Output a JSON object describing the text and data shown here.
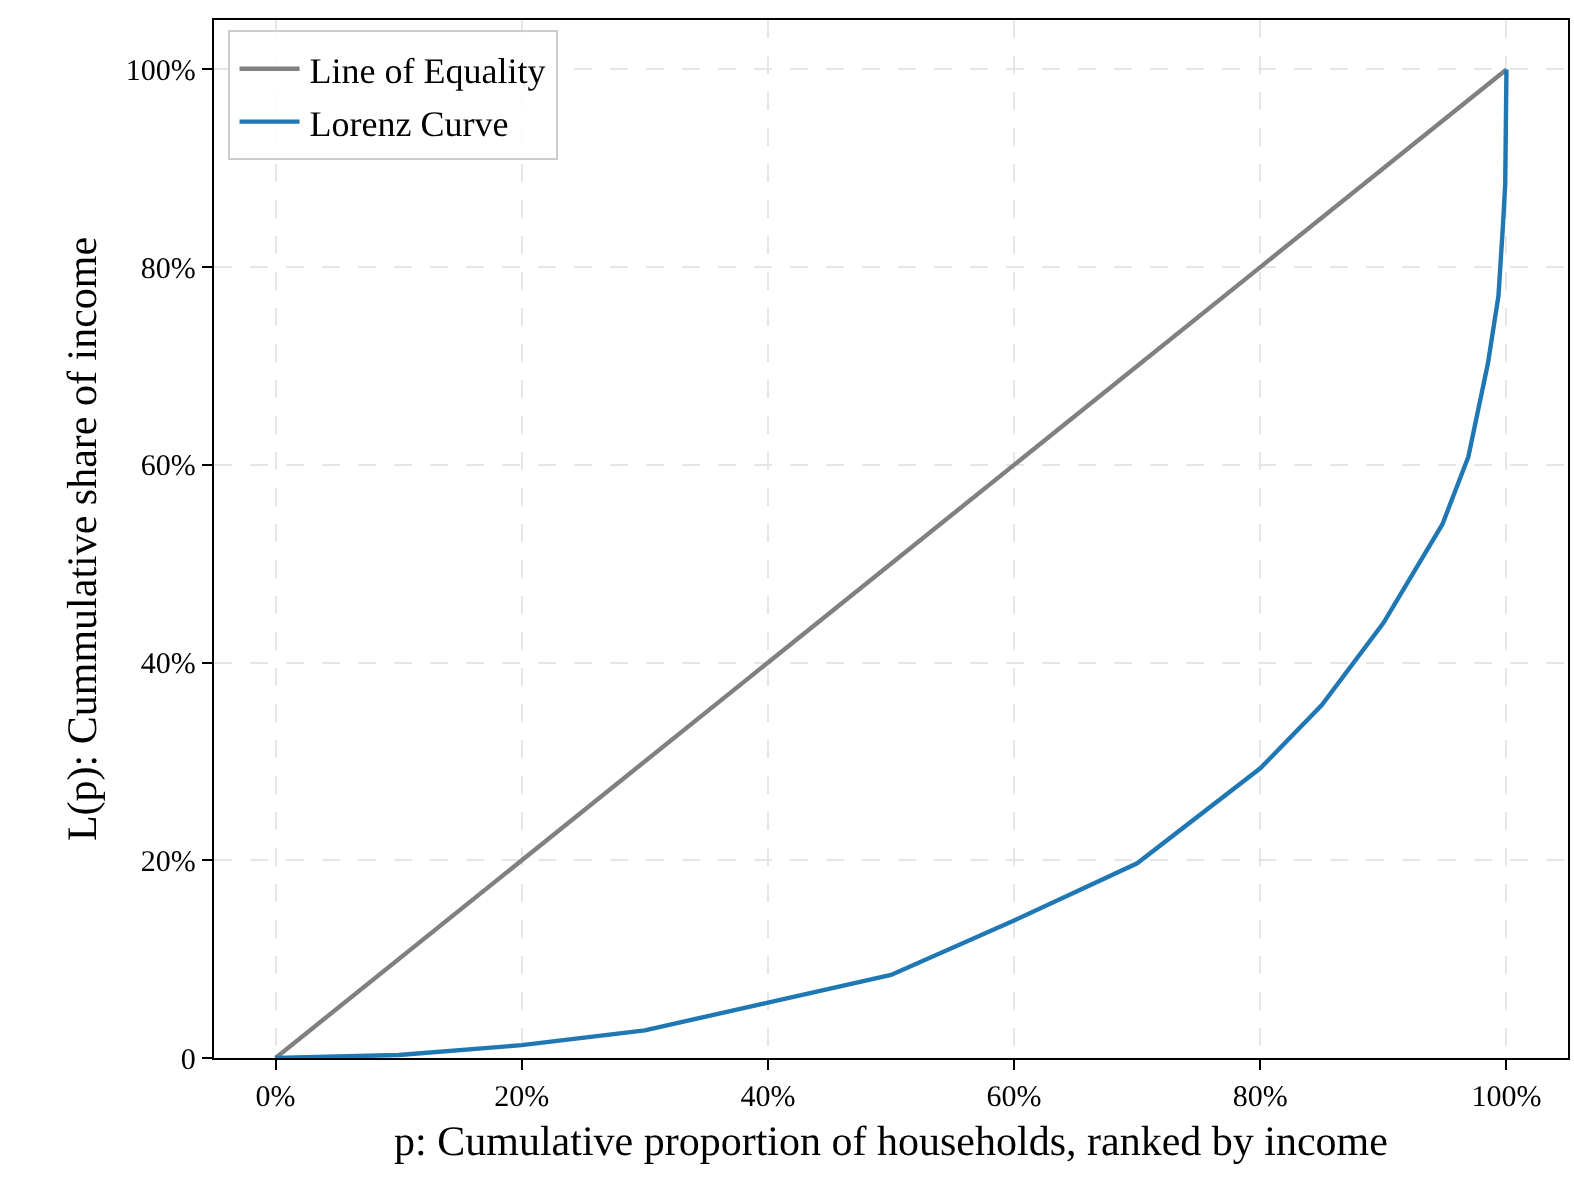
{
  "chart_data": {
    "type": "line",
    "xlabel": "p: Cumulative proportion of households, ranked by income",
    "ylabel": "L(p): Cummulative share of income",
    "xlim": [
      -5,
      105
    ],
    "ylim": [
      0,
      105
    ],
    "xticks": [
      {
        "value": 0,
        "label": "0%"
      },
      {
        "value": 20,
        "label": "20%"
      },
      {
        "value": 40,
        "label": "40%"
      },
      {
        "value": 60,
        "label": "60%"
      },
      {
        "value": 80,
        "label": "80%"
      },
      {
        "value": 100,
        "label": "100%"
      }
    ],
    "yticks": [
      0,
      {
        "value": 20,
        "label": "20%"
      },
      {
        "value": 40,
        "label": "40%"
      },
      {
        "value": 60,
        "label": "60%"
      },
      {
        "value": 80,
        "label": "80%"
      },
      {
        "value": 100,
        "label": "100%"
      }
    ],
    "grid": true,
    "legend": "top left",
    "series": [
      {
        "name": "Line of Equality",
        "color": "#808080",
        "x": [
          0,
          100
        ],
        "values": [
          0,
          100
        ]
      },
      {
        "name": "Lorenz Curve",
        "color": "#1f77b4",
        "x": [
          0,
          10,
          20,
          30,
          40,
          50,
          60,
          70,
          80,
          85,
          90,
          94.8,
          96.9,
          98.5,
          99.35,
          99.7,
          99.9,
          100
        ],
        "values": [
          0,
          0.3,
          1.3,
          2.8,
          5.6,
          8.4,
          13.9,
          19.7,
          29.3,
          35.7,
          44,
          54,
          60.8,
          70.3,
          77.1,
          83.9,
          88.4,
          100
        ]
      }
    ]
  }
}
